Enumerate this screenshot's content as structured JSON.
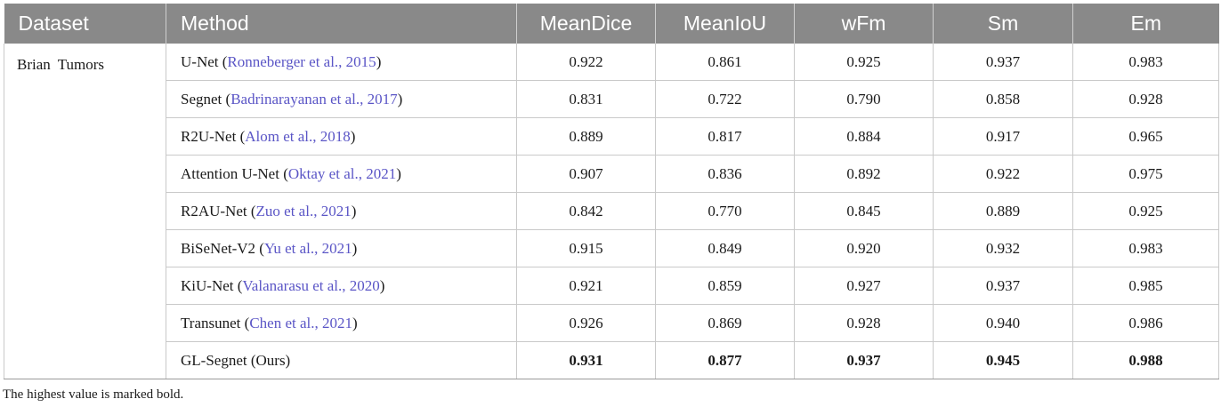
{
  "headers": [
    "Dataset",
    "Method",
    "MeanDice",
    "MeanIoU",
    "wFm",
    "Sm",
    "Em"
  ],
  "dataset": "Brian Tumors",
  "rows": [
    {
      "method": "U-Net",
      "cite": "Ronneberger et al., 2015",
      "values": [
        "0.922",
        "0.861",
        "0.925",
        "0.937",
        "0.983"
      ]
    },
    {
      "method": "Segnet",
      "cite": "Badrinarayanan et al., 2017",
      "values": [
        "0.831",
        "0.722",
        "0.790",
        "0.858",
        "0.928"
      ]
    },
    {
      "method": "R2U-Net",
      "cite": "Alom et al., 2018",
      "values": [
        "0.889",
        "0.817",
        "0.884",
        "0.917",
        "0.965"
      ]
    },
    {
      "method": "Attention U-Net",
      "cite": "Oktay et al., 2021",
      "values": [
        "0.907",
        "0.836",
        "0.892",
        "0.922",
        "0.975"
      ]
    },
    {
      "method": "R2AU-Net",
      "cite": "Zuo et al., 2021",
      "values": [
        "0.842",
        "0.770",
        "0.845",
        "0.889",
        "0.925"
      ]
    },
    {
      "method": "BiSeNet-V2",
      "cite": "Yu et al., 2021",
      "values": [
        "0.915",
        "0.849",
        "0.920",
        "0.932",
        "0.983"
      ]
    },
    {
      "method": "KiU-Net",
      "cite": "Valanarasu et al., 2020",
      "values": [
        "0.921",
        "0.859",
        "0.927",
        "0.937",
        "0.985"
      ]
    },
    {
      "method": "Transunet",
      "cite": "Chen et al., 2021",
      "values": [
        "0.926",
        "0.869",
        "0.928",
        "0.940",
        "0.986"
      ]
    },
    {
      "method": "GL-Segnet (Ours)",
      "cite": "",
      "values": [
        "0.931",
        "0.877",
        "0.937",
        "0.945",
        "0.988"
      ],
      "bold": true
    }
  ],
  "footnote": "The highest value is marked bold."
}
